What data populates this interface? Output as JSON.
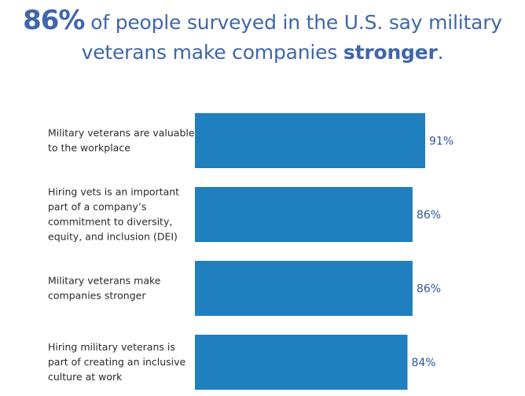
{
  "headline": {
    "stat": "86%",
    "part1": "of people surveyed in the U.S. say military",
    "part2": "veterans make companies",
    "emphasis": "stronger",
    "end": "."
  },
  "colors": {
    "bar": "#1f7fbf",
    "title": "#3f67a9",
    "value_text": "#2f5597",
    "label_text": "#2a2a2a"
  },
  "chart_data": {
    "type": "bar",
    "orientation": "horizontal",
    "categories": [
      "Military veterans are valuable to the workplace",
      "Hiring vets is an important part of a company’s commitment to diversity, equity, and inclusion (DEI)",
      "Military veterans make companies stronger",
      "Hiring military veterans is part of creating an inclusive culture at work"
    ],
    "category_lines": [
      [
        "Military veterans are valuable",
        "to the workplace"
      ],
      [
        "Hiring vets is an important",
        "part of a company’s",
        "commitment to diversity,",
        "equity, and inclusion (DEI)"
      ],
      [
        "Military veterans make",
        "companies stronger"
      ],
      [
        "Hiring military veterans is",
        "part of creating an inclusive",
        "culture at work"
      ]
    ],
    "values": [
      91,
      86,
      86,
      84
    ],
    "value_labels": [
      "91%",
      "86%",
      "86%",
      "84%"
    ],
    "xlim": [
      0,
      100
    ],
    "grid": false,
    "legend": "none"
  }
}
